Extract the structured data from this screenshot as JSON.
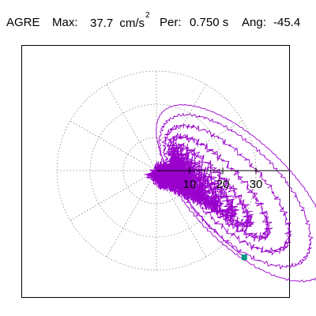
{
  "header": {
    "station": "AGRE",
    "max_label": "Max:",
    "max_value": "37.7",
    "max_unit": "cm/s",
    "max_unit_exp": "2",
    "per_label": "Per:",
    "per_value": "0.750 s",
    "ang_label": "Ang:",
    "ang_value": "-45.4"
  },
  "chart_data": {
    "type": "scatter",
    "subtype": "polar hodogram (particle-motion orbit)",
    "title": "AGRE  Max: 37.7 cm/s2  Per: 0.750 s  Ang: -45.4",
    "max_amplitude": 37.7,
    "max_unit": "cm/s2",
    "period_s": 0.75,
    "angle_deg": -45.4,
    "radial_ticks": [
      10,
      20,
      30
    ],
    "radial_tick_labels": [
      "10",
      "20",
      "30"
    ],
    "range": {
      "x": [
        -37.7,
        37.7
      ],
      "y": [
        -37.7,
        37.7
      ]
    },
    "polar_grid": {
      "rings": [
        10,
        20,
        30
      ],
      "spokes_deg": [
        0,
        30,
        60,
        90,
        120,
        150,
        180,
        210,
        240,
        270,
        300,
        330
      ],
      "style": "dotted"
    },
    "trace_color": "#9900cc",
    "marker_color": "#009980",
    "peak_marker": {
      "x": 26.5,
      "y": -26.1
    }
  }
}
